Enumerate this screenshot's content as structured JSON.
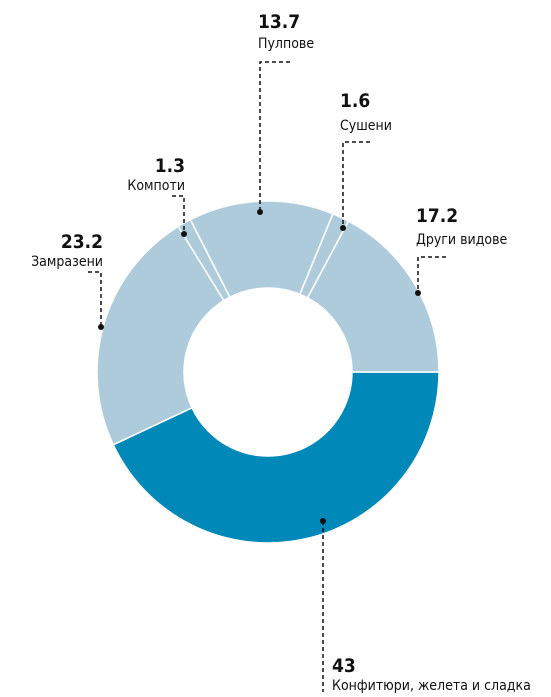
{
  "chart_data": {
    "type": "donut",
    "categories": [
      "Конфитюри, желета и сладка",
      "Замразени",
      "Компоти",
      "Пулпове",
      "Сушени",
      "Други видове"
    ],
    "values": [
      43,
      23.2,
      1.3,
      13.7,
      1.6,
      17.2
    ],
    "colors": [
      "#0088b8",
      "#aecbdb",
      "#aecbdb",
      "#aecbdb",
      "#aecbdb",
      "#aecbdb"
    ]
  }
}
